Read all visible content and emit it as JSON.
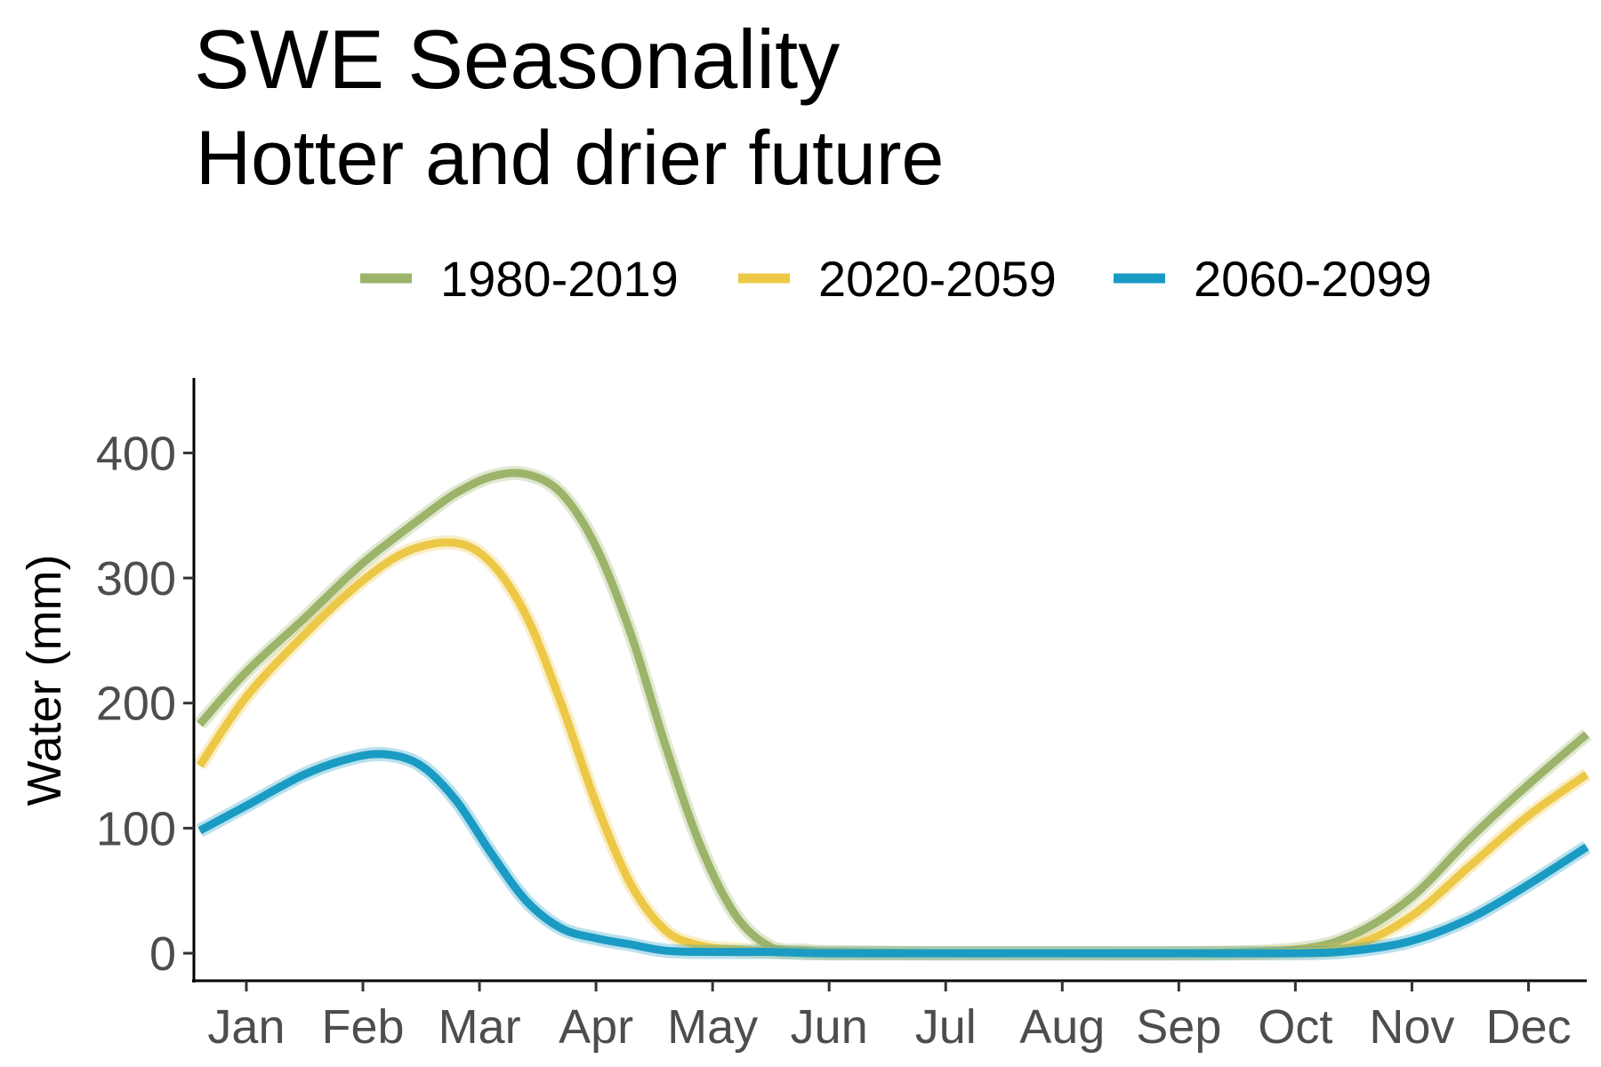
{
  "chart_data": {
    "type": "line",
    "title": "SWE Seasonality",
    "subtitle": "Hotter and drier future",
    "xlabel": "",
    "ylabel": "Water (mm)",
    "x_ticks": [
      "Jan",
      "Feb",
      "Mar",
      "Apr",
      "May",
      "Jun",
      "Jul",
      "Aug",
      "Sep",
      "Oct",
      "Nov",
      "Dec"
    ],
    "y_ticks": [
      0,
      100,
      200,
      300,
      400
    ],
    "xlim": [
      0.55,
      12.5
    ],
    "ylim": [
      -22,
      460
    ],
    "grid": false,
    "legend_position": "top",
    "series": [
      {
        "name": "1980-2019",
        "color": "#9cb46a",
        "x": [
          0.6,
          1.0,
          1.5,
          2.0,
          2.5,
          2.8,
          3.1,
          3.4,
          3.7,
          4.0,
          4.3,
          4.6,
          4.9,
          5.2,
          5.5,
          5.8,
          6.0,
          7.0,
          8.0,
          9.0,
          10.0,
          10.5,
          11.0,
          11.5,
          12.0,
          12.5
        ],
        "y": [
          183,
          225,
          268,
          312,
          348,
          368,
          381,
          383,
          368,
          325,
          255,
          165,
          85,
          30,
          5,
          2,
          1,
          0,
          0,
          0,
          3,
          15,
          45,
          92,
          135,
          175
        ]
      },
      {
        "name": "2020-2059",
        "color": "#ecc846",
        "x": [
          0.6,
          1.0,
          1.5,
          2.0,
          2.4,
          2.8,
          3.1,
          3.4,
          3.7,
          4.0,
          4.3,
          4.6,
          4.9,
          5.2,
          5.6,
          6.0,
          7.0,
          8.0,
          9.0,
          10.0,
          10.5,
          11.0,
          11.5,
          12.0,
          12.5
        ],
        "y": [
          150,
          205,
          255,
          298,
          322,
          328,
          312,
          270,
          200,
          120,
          55,
          18,
          6,
          3,
          1,
          0,
          0,
          0,
          0,
          1,
          6,
          30,
          70,
          110,
          143
        ]
      },
      {
        "name": "2060-2099",
        "color": "#1a9bc4",
        "x": [
          0.6,
          1.0,
          1.5,
          1.9,
          2.2,
          2.5,
          2.8,
          3.1,
          3.4,
          3.7,
          4.0,
          4.3,
          4.6,
          5.0,
          5.5,
          6.0,
          7.0,
          8.0,
          9.0,
          10.0,
          10.5,
          11.0,
          11.5,
          12.0,
          12.5
        ],
        "y": [
          98,
          118,
          143,
          156,
          159,
          150,
          122,
          80,
          42,
          20,
          12,
          7,
          2,
          1,
          1,
          0,
          0,
          0,
          0,
          0,
          2,
          10,
          28,
          55,
          85
        ]
      }
    ]
  }
}
